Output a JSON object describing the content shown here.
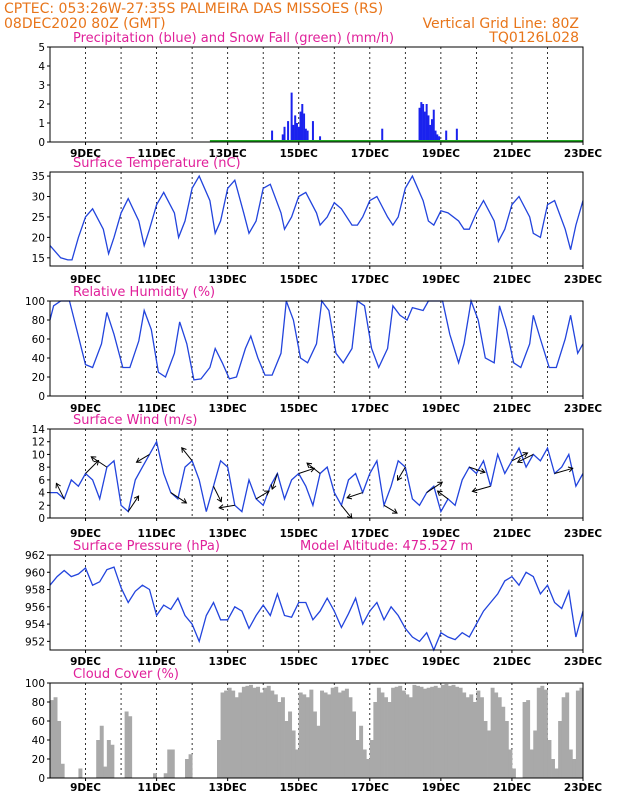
{
  "header": {
    "line1_left": "CPTEC:    053:26W-27:35S   PALMEIRA DAS MISSOES (RS)",
    "line2_left": "08DEC2020 80Z (GMT)",
    "line2_right": "Vertical Grid Line: 80Z",
    "line3_right": "TQ0126L028"
  },
  "chart_data": [
    {
      "type": "bar",
      "title": "Precipitation (blue) and Snow Fall (green) (mm/h)",
      "x_ticks": [
        "9DEC",
        "11DEC",
        "13DEC",
        "15DEC",
        "17DEC",
        "19DEC",
        "21DEC",
        "23DEC"
      ],
      "ylim": [
        0,
        5
      ],
      "y_ticks": [
        "0",
        "1",
        "2",
        "3",
        "4",
        "5"
      ],
      "grid": true,
      "colors": {
        "precipitation": "#1a22ee",
        "snow": "#22aa22"
      },
      "series": [
        {
          "name": "Precipitation",
          "x": [
            14.25,
            14.55,
            14.6,
            14.7,
            14.8,
            14.85,
            14.9,
            14.95,
            15.0,
            15.05,
            15.1,
            15.15,
            15.2,
            15.25,
            15.4,
            15.6,
            17.35,
            18.4,
            18.45,
            18.5,
            18.55,
            18.6,
            18.65,
            18.7,
            18.75,
            18.8,
            18.85,
            18.9,
            18.95,
            19.15,
            19.45
          ],
          "values": [
            0.6,
            0.4,
            0.8,
            1.1,
            2.6,
            0.9,
            1.4,
            1.0,
            0.8,
            1.6,
            2.0,
            1.5,
            0.7,
            0.6,
            1.1,
            0.3,
            0.7,
            1.8,
            2.1,
            2.0,
            1.6,
            2.0,
            1.4,
            0.9,
            1.2,
            1.7,
            0.6,
            0.4,
            0.3,
            0.6,
            0.7
          ]
        },
        {
          "name": "Snow Fall",
          "x": [],
          "values": []
        }
      ]
    },
    {
      "type": "line",
      "title": "Surface Temperature (nC)",
      "x_ticks": [
        "9DEC",
        "11DEC",
        "13DEC",
        "15DEC",
        "17DEC",
        "19DEC",
        "21DEC",
        "23DEC"
      ],
      "ylim": [
        13,
        36
      ],
      "y_ticks": [
        "15",
        "20",
        "25",
        "30",
        "35"
      ],
      "grid": true,
      "x": [
        8.0,
        8.3,
        8.5,
        8.62,
        8.8,
        9.0,
        9.2,
        9.5,
        9.65,
        9.8,
        10.0,
        10.2,
        10.5,
        10.65,
        10.8,
        11.0,
        11.2,
        11.5,
        11.62,
        11.8,
        12.0,
        12.2,
        12.5,
        12.65,
        12.8,
        13.0,
        13.2,
        13.45,
        13.6,
        13.8,
        14.0,
        14.2,
        14.5,
        14.6,
        14.8,
        15.0,
        15.2,
        15.5,
        15.6,
        15.8,
        16.0,
        16.2,
        16.5,
        16.65,
        16.8,
        17.0,
        17.2,
        17.5,
        17.65,
        17.8,
        18.0,
        18.2,
        18.5,
        18.65,
        18.8,
        19.0,
        19.2,
        19.5,
        19.65,
        19.8,
        20.0,
        20.2,
        20.5,
        20.62,
        20.8,
        21.0,
        21.2,
        21.5,
        21.6,
        21.8,
        22.0,
        22.2,
        22.5,
        22.65,
        22.8,
        23.0
      ],
      "values": [
        18,
        15,
        14.5,
        14.5,
        20,
        25,
        27,
        22,
        16,
        20,
        26,
        29.5,
        24,
        18,
        22,
        28,
        31,
        26,
        20,
        24,
        32,
        35,
        29,
        21,
        24,
        32,
        34,
        26,
        21,
        24,
        32,
        33,
        26,
        22,
        25,
        30,
        31,
        26,
        23,
        25,
        28.5,
        27,
        23,
        23,
        25,
        29,
        30,
        25,
        23,
        25,
        32,
        35,
        29,
        24,
        23,
        26.5,
        26,
        24,
        22,
        22,
        26,
        29,
        24,
        19,
        22,
        28,
        30,
        25,
        21,
        20,
        28,
        29,
        22,
        17,
        23,
        29
      ]
    },
    {
      "type": "line",
      "title": "Relative Humidity (%)",
      "x_ticks": [
        "9DEC",
        "11DEC",
        "13DEC",
        "15DEC",
        "17DEC",
        "19DEC",
        "21DEC",
        "23DEC"
      ],
      "ylim": [
        0,
        100
      ],
      "y_ticks": [
        "0",
        "20",
        "40",
        "60",
        "80",
        "100"
      ],
      "grid": true,
      "x": [
        8.0,
        8.1,
        8.3,
        8.55,
        8.75,
        9.0,
        9.2,
        9.45,
        9.6,
        9.8,
        10.05,
        10.25,
        10.5,
        10.65,
        10.85,
        11.05,
        11.25,
        11.5,
        11.65,
        11.85,
        12.05,
        12.25,
        12.5,
        12.65,
        12.85,
        13.05,
        13.25,
        13.5,
        13.65,
        13.85,
        14.05,
        14.25,
        14.5,
        14.65,
        14.85,
        15.05,
        15.25,
        15.5,
        15.65,
        15.85,
        16.05,
        16.25,
        16.5,
        16.65,
        16.85,
        17.05,
        17.25,
        17.5,
        17.65,
        17.85,
        18.05,
        18.2,
        18.5,
        18.65,
        18.85,
        19.05,
        19.25,
        19.5,
        19.65,
        19.85,
        20.05,
        20.25,
        20.5,
        20.65,
        20.85,
        21.05,
        21.25,
        21.5,
        21.6,
        21.8,
        22.05,
        22.25,
        22.5,
        22.65,
        22.85,
        23.0
      ],
      "values": [
        80,
        95,
        100,
        100,
        70,
        33,
        30,
        55,
        88,
        65,
        30,
        30,
        58,
        90,
        70,
        25,
        20,
        45,
        78,
        55,
        17,
        18,
        30,
        50,
        35,
        18,
        20,
        50,
        63,
        40,
        22,
        22,
        45,
        100,
        80,
        40,
        35,
        55,
        100,
        90,
        45,
        35,
        50,
        100,
        95,
        50,
        30,
        50,
        95,
        85,
        80,
        93,
        90,
        100,
        100,
        100,
        65,
        35,
        55,
        100,
        80,
        40,
        35,
        95,
        70,
        35,
        30,
        55,
        85,
        60,
        30,
        30,
        60,
        85,
        45,
        55
      ]
    },
    {
      "type": "line",
      "title": "Surface Wind (m/s)",
      "x_ticks": [
        "9DEC",
        "11DEC",
        "13DEC",
        "15DEC",
        "17DEC",
        "19DEC",
        "21DEC",
        "23DEC"
      ],
      "ylim": [
        0,
        14
      ],
      "y_ticks": [
        "0",
        "2",
        "4",
        "6",
        "8",
        "10",
        "12",
        "14"
      ],
      "grid": true,
      "x": [
        8.0,
        8.2,
        8.4,
        8.6,
        8.8,
        9.0,
        9.2,
        9.4,
        9.6,
        9.8,
        10.0,
        10.2,
        10.4,
        10.6,
        10.8,
        11.0,
        11.2,
        11.4,
        11.6,
        11.8,
        12.0,
        12.2,
        12.4,
        12.6,
        12.8,
        13.0,
        13.2,
        13.4,
        13.6,
        13.8,
        14.0,
        14.2,
        14.4,
        14.6,
        14.8,
        15.0,
        15.2,
        15.4,
        15.6,
        15.8,
        16.0,
        16.2,
        16.4,
        16.6,
        16.8,
        17.0,
        17.2,
        17.4,
        17.6,
        17.8,
        18.0,
        18.2,
        18.4,
        18.6,
        18.8,
        19.0,
        19.2,
        19.4,
        19.6,
        19.8,
        20.0,
        20.2,
        20.4,
        20.6,
        20.8,
        21.0,
        21.2,
        21.4,
        21.6,
        21.8,
        22.0,
        22.2,
        22.4,
        22.6,
        22.8,
        23.0
      ],
      "values": [
        4,
        4,
        3,
        6,
        5,
        7,
        6,
        3,
        8,
        9,
        2,
        1,
        6,
        8,
        10,
        12,
        7,
        4,
        3,
        8,
        9,
        6,
        1,
        5,
        9,
        8,
        2,
        1,
        6,
        3,
        2,
        5,
        7,
        3,
        6,
        7,
        5,
        2,
        7,
        8,
        4,
        2,
        6,
        7,
        4,
        7,
        9,
        2,
        5,
        9,
        8,
        3,
        2,
        4,
        5,
        1,
        3,
        2,
        6,
        8,
        7,
        9,
        5,
        10,
        7,
        9,
        11,
        8,
        10,
        9,
        11,
        7,
        8,
        10,
        5,
        7
      ]
    },
    {
      "type": "line",
      "title": "Surface Pressure (hPa)",
      "annotation": "Model Altitude: 475.527 m",
      "x_ticks": [
        "9DEC",
        "11DEC",
        "13DEC",
        "15DEC",
        "17DEC",
        "19DEC",
        "21DEC",
        "23DEC"
      ],
      "ylim": [
        951,
        962
      ],
      "y_ticks": [
        "952",
        "954",
        "956",
        "958",
        "960",
        "962"
      ],
      "grid": true,
      "x": [
        8.0,
        8.2,
        8.4,
        8.6,
        8.8,
        9.0,
        9.2,
        9.4,
        9.6,
        9.8,
        10.0,
        10.2,
        10.4,
        10.6,
        10.8,
        11.0,
        11.2,
        11.4,
        11.6,
        11.8,
        12.0,
        12.2,
        12.4,
        12.6,
        12.8,
        13.0,
        13.2,
        13.4,
        13.6,
        13.8,
        14.0,
        14.2,
        14.4,
        14.6,
        14.8,
        15.0,
        15.2,
        15.4,
        15.6,
        15.8,
        16.0,
        16.2,
        16.4,
        16.6,
        16.8,
        17.0,
        17.2,
        17.4,
        17.6,
        17.8,
        18.0,
        18.2,
        18.4,
        18.6,
        18.8,
        19.0,
        19.2,
        19.4,
        19.6,
        19.8,
        20.0,
        20.2,
        20.4,
        20.6,
        20.8,
        21.0,
        21.2,
        21.4,
        21.6,
        21.8,
        22.0,
        22.2,
        22.4,
        22.6,
        22.8,
        23.0
      ],
      "values": [
        958.5,
        959.5,
        960.2,
        959.5,
        959.8,
        960.5,
        958.5,
        958.9,
        960.3,
        960.6,
        958.2,
        956.5,
        957.8,
        958.5,
        958.0,
        955.0,
        956.2,
        955.7,
        957.0,
        955.0,
        954.0,
        952.0,
        955.0,
        956.5,
        954.5,
        954.5,
        956.0,
        955.5,
        953.5,
        955.0,
        956.2,
        955.0,
        957.5,
        955.0,
        954.8,
        956.5,
        956.5,
        954.5,
        955.5,
        957.0,
        955.5,
        953.6,
        955.2,
        957.0,
        954.0,
        955.5,
        956.5,
        954.5,
        956.0,
        955.0,
        953.5,
        952.5,
        952.0,
        953.0,
        951.0,
        953.0,
        952.5,
        952.2,
        953.0,
        952.5,
        954.0,
        955.5,
        956.5,
        957.5,
        959.0,
        959.5,
        958.5,
        960.0,
        959.5,
        957.5,
        958.5,
        956.5,
        955.8,
        957.8,
        952.5,
        955.5
      ]
    },
    {
      "type": "bar",
      "title": "Cloud Cover (%)",
      "x_ticks": [
        "9DEC",
        "11DEC",
        "13DEC",
        "15DEC",
        "17DEC",
        "19DEC",
        "21DEC",
        "23DEC"
      ],
      "ylim": [
        0,
        100
      ],
      "y_ticks": [
        "0",
        "20",
        "40",
        "60",
        "80",
        "100"
      ],
      "grid": true,
      "colors": {
        "bar": "#a9a9a9"
      },
      "x": [
        8.0,
        8.1,
        8.2,
        8.3,
        8.4,
        8.5,
        8.6,
        8.7,
        8.8,
        8.9,
        9.0,
        9.1,
        9.2,
        9.3,
        9.4,
        9.5,
        9.6,
        9.7,
        9.8,
        9.9,
        10.0,
        10.1,
        10.2,
        10.3,
        10.4,
        10.5,
        10.6,
        10.7,
        10.8,
        10.9,
        11.0,
        11.1,
        11.2,
        11.3,
        11.4,
        11.5,
        11.6,
        11.7,
        11.8,
        11.9,
        12.0,
        12.1,
        12.2,
        12.3,
        12.4,
        12.5,
        12.6,
        12.7,
        12.8,
        12.9,
        13.0,
        13.1,
        13.2,
        13.3,
        13.4,
        13.5,
        13.6,
        13.7,
        13.8,
        13.9,
        14.0,
        14.1,
        14.2,
        14.3,
        14.4,
        14.5,
        14.6,
        14.7,
        14.8,
        14.9,
        15.0,
        15.1,
        15.2,
        15.3,
        15.4,
        15.5,
        15.6,
        15.7,
        15.8,
        15.9,
        16.0,
        16.1,
        16.2,
        16.3,
        16.4,
        16.5,
        16.6,
        16.7,
        16.8,
        16.9,
        17.0,
        17.1,
        17.2,
        17.3,
        17.4,
        17.5,
        17.6,
        17.7,
        17.8,
        17.9,
        18.0,
        18.1,
        18.2,
        18.3,
        18.4,
        18.5,
        18.6,
        18.7,
        18.8,
        18.9,
        19.0,
        19.1,
        19.2,
        19.3,
        19.4,
        19.5,
        19.6,
        19.7,
        19.8,
        19.9,
        20.0,
        20.1,
        20.2,
        20.3,
        20.4,
        20.5,
        20.6,
        20.7,
        20.8,
        20.9,
        21.0,
        21.1,
        21.2,
        21.3,
        21.4,
        21.5,
        21.6,
        21.7,
        21.8,
        21.9,
        22.0,
        22.1,
        22.2,
        22.3,
        22.4,
        22.5,
        22.6,
        22.7,
        22.8,
        22.9
      ],
      "values": [
        82,
        85,
        60,
        15,
        0,
        0,
        0,
        0,
        10,
        0,
        0,
        0,
        0,
        40,
        55,
        12,
        40,
        35,
        0,
        0,
        0,
        70,
        65,
        0,
        0,
        0,
        0,
        0,
        0,
        5,
        0,
        0,
        5,
        30,
        30,
        0,
        0,
        0,
        20,
        25,
        0,
        0,
        0,
        0,
        0,
        0,
        0,
        40,
        90,
        92,
        95,
        92,
        85,
        90,
        96,
        97,
        98,
        95,
        96,
        90,
        95,
        97,
        92,
        88,
        80,
        85,
        60,
        70,
        50,
        30,
        90,
        88,
        85,
        93,
        70,
        55,
        92,
        90,
        88,
        95,
        96,
        90,
        92,
        94,
        85,
        70,
        40,
        55,
        30,
        20,
        40,
        80,
        95,
        90,
        85,
        80,
        95,
        96,
        97,
        92,
        88,
        85,
        98,
        97,
        96,
        94,
        95,
        96,
        97,
        95,
        98,
        99,
        97,
        98,
        96,
        95,
        90,
        85,
        88,
        80,
        92,
        85,
        60,
        50,
        95,
        90,
        85,
        75,
        60,
        30,
        10,
        0,
        0,
        80,
        82,
        30,
        50,
        95,
        97,
        93,
        40,
        20,
        10,
        60,
        85,
        90,
        30,
        20,
        92,
        95
      ]
    }
  ]
}
